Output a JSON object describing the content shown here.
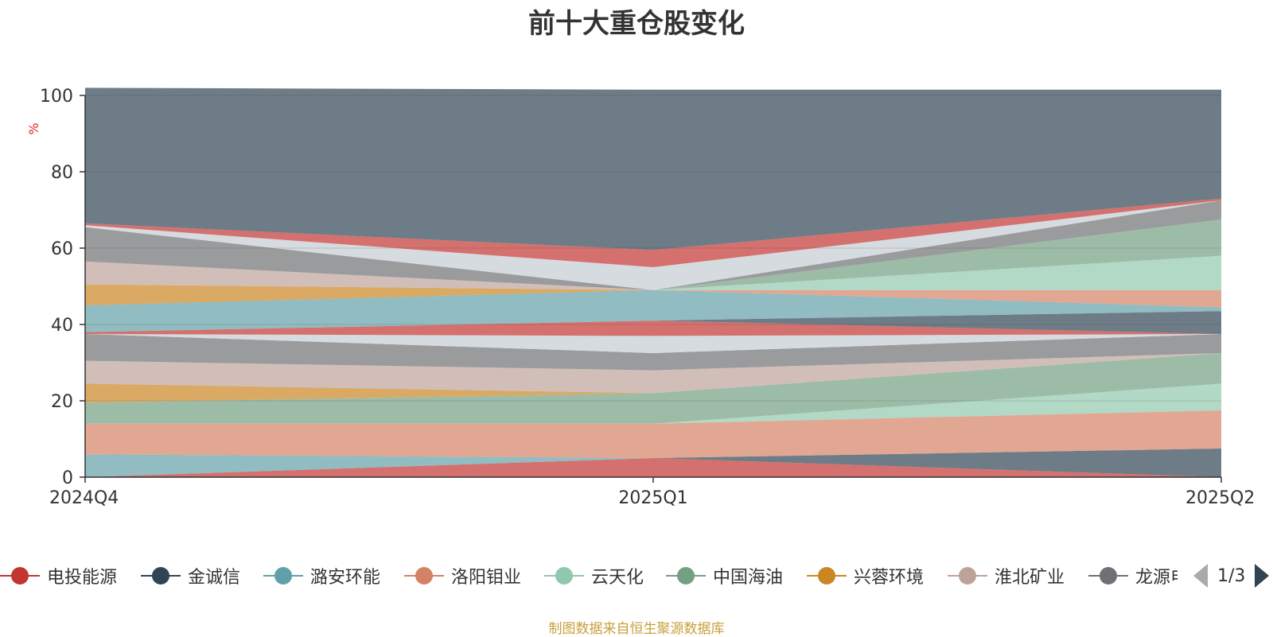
{
  "chart_data": {
    "type": "area",
    "title": "前十大重仓股变化",
    "ylabel": "%",
    "xlabel": "",
    "categories": [
      "2024Q4",
      "2025Q1",
      "2025Q2"
    ],
    "ylim": [
      0,
      100
    ],
    "yticks": [
      0,
      20,
      40,
      60,
      80,
      100
    ],
    "grid": true,
    "source": "制图数据来自恒生聚源数据库",
    "series": [
      {
        "name": "电投能源",
        "color": "#c23531",
        "values": [
          0,
          5,
          0
        ]
      },
      {
        "name": "金诚信",
        "color": "#2f4554",
        "values": [
          0,
          0,
          7.5
        ]
      },
      {
        "name": "潞安环能",
        "color": "#61a0a8",
        "values": [
          6,
          0,
          0
        ]
      },
      {
        "name": "洛阳钼业",
        "color": "#d48265",
        "values": [
          8,
          9,
          10
        ]
      },
      {
        "name": "云天化",
        "color": "#91c7ae",
        "values": [
          0,
          0,
          7
        ]
      },
      {
        "name": "中国海油",
        "color": "#749f83",
        "values": [
          5.5,
          8,
          8
        ]
      },
      {
        "name": "兴蓉环境",
        "color": "#ca8622",
        "values": [
          5,
          0,
          0
        ]
      },
      {
        "name": "淮北矿业",
        "color": "#bda29a",
        "values": [
          6,
          6,
          0
        ]
      },
      {
        "name": "龙源电力",
        "color": "#6e7074",
        "values": [
          7,
          4.5,
          5
        ]
      },
      {
        "name": "",
        "color": "#c4ccd3",
        "values": [
          0,
          4.5,
          0
        ]
      },
      {
        "name": "",
        "color": "#c23531",
        "values": [
          0.5,
          4,
          0
        ]
      },
      {
        "name": "",
        "color": "#2f4554",
        "values": [
          0,
          0,
          6
        ]
      },
      {
        "name": "",
        "color": "#61a0a8",
        "values": [
          7,
          8,
          1
        ]
      },
      {
        "name": "",
        "color": "#d48265",
        "values": [
          0,
          0,
          4.5
        ]
      },
      {
        "name": "",
        "color": "#91c7ae",
        "values": [
          0,
          0,
          9
        ]
      },
      {
        "name": "",
        "color": "#749f83",
        "values": [
          0,
          0,
          9.5
        ]
      },
      {
        "name": "",
        "color": "#ca8622",
        "values": [
          5.5,
          0,
          0
        ]
      },
      {
        "name": "",
        "color": "#bda29a",
        "values": [
          6,
          0,
          0
        ]
      },
      {
        "name": "",
        "color": "#6e7074",
        "values": [
          9,
          0,
          5
        ]
      },
      {
        "name": "",
        "color": "#c4ccd3",
        "values": [
          0.5,
          6,
          0
        ]
      },
      {
        "name": "",
        "color": "#c23531",
        "values": [
          0.5,
          4.5,
          0.5
        ]
      },
      {
        "name": "",
        "color": "#2f4554",
        "values": [
          35.5,
          42,
          28.5
        ]
      }
    ],
    "legend": {
      "position": "bottom",
      "visible_items": [
        "电投能源",
        "金诚信",
        "潞安环能",
        "洛阳钼业",
        "云天化",
        "中国海油",
        "兴蓉环境",
        "淮北矿业",
        "龙源电力"
      ],
      "page": "1/3"
    }
  }
}
